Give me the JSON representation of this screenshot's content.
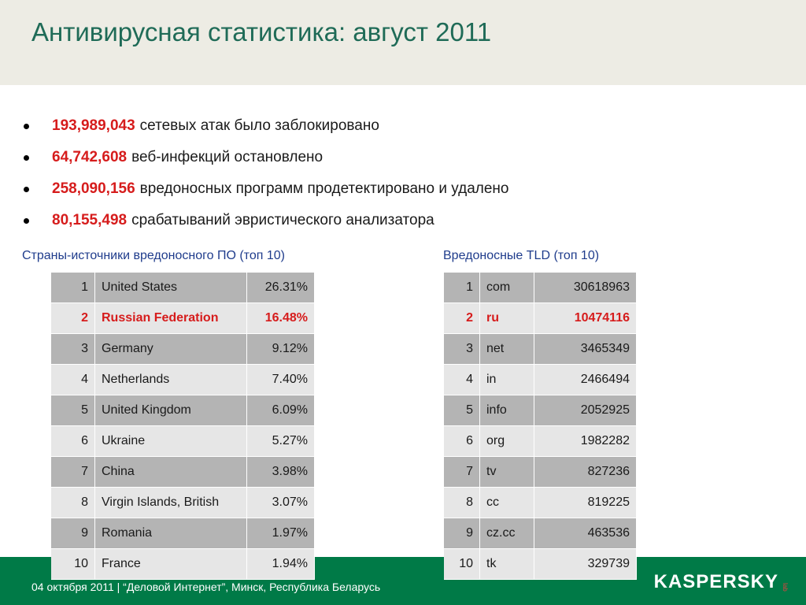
{
  "header": {
    "title": "Антивирусная статистика: август 2011"
  },
  "stats": [
    {
      "value": "193,989,043",
      "text": "сетевых атак было заблокировано"
    },
    {
      "value": "64,742,608",
      "text": "веб-инфекций остановлено"
    },
    {
      "value": "258,090,156",
      "text": "вредоносных программ продетектировано и удалено"
    },
    {
      "value": "80,155,498",
      "text": "срабатываний эвристического анализатора"
    }
  ],
  "countries": {
    "caption": "Страны-источники вредоносного ПО (топ 10)",
    "rows": [
      {
        "rank": "1",
        "name": "United States",
        "value": "26.31%"
      },
      {
        "rank": "2",
        "name": "Russian Federation",
        "value": "16.48%"
      },
      {
        "rank": "3",
        "name": "Germany",
        "value": "9.12%"
      },
      {
        "rank": "4",
        "name": "Netherlands",
        "value": "7.40%"
      },
      {
        "rank": "5",
        "name": "United Kingdom",
        "value": "6.09%"
      },
      {
        "rank": "6",
        "name": "Ukraine",
        "value": "5.27%"
      },
      {
        "rank": "7",
        "name": "China",
        "value": "3.98%"
      },
      {
        "rank": "8",
        "name": "Virgin Islands, British",
        "value": "3.07%"
      },
      {
        "rank": "9",
        "name": "Romania",
        "value": "1.97%"
      },
      {
        "rank": "10",
        "name": "France",
        "value": "1.94%"
      }
    ]
  },
  "tlds": {
    "caption": "Вредоносные TLD (топ 10)",
    "rows": [
      {
        "rank": "1",
        "name": "com",
        "value": "30618963"
      },
      {
        "rank": "2",
        "name": "ru",
        "value": "10474116"
      },
      {
        "rank": "3",
        "name": "net",
        "value": "3465349"
      },
      {
        "rank": "4",
        "name": "in",
        "value": "2466494"
      },
      {
        "rank": "5",
        "name": "info",
        "value": "2052925"
      },
      {
        "rank": "6",
        "name": "org",
        "value": "1982282"
      },
      {
        "rank": "7",
        "name": "tv",
        "value": "827236"
      },
      {
        "rank": "8",
        "name": "cc",
        "value": "819225"
      },
      {
        "rank": "9",
        "name": "cz.cc",
        "value": "463536"
      },
      {
        "rank": "10",
        "name": "tk",
        "value": "329739"
      }
    ]
  },
  "footer": {
    "text": "04 октября 2011  |  “Деловой Интернет”, Минск, Республика Беларусь",
    "logo": "KASPERSKY",
    "logo_lab": "lab"
  },
  "colors": {
    "title": "#1f6b57",
    "highlight": "#d61c1c",
    "caption": "#1f3c8c",
    "footer": "#007a47",
    "header_band": "#edece4"
  }
}
